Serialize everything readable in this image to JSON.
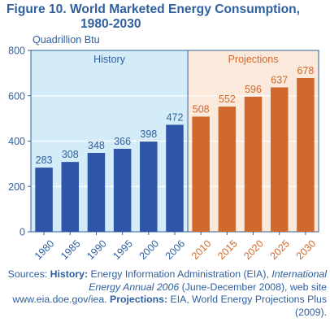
{
  "figure": {
    "title_line1": "Figure 10.  World Marketed Energy Consumption,",
    "title_line2": "1980-2030"
  },
  "sources": {
    "prefix": "Sources: ",
    "history_label": "History:",
    "history_text": " Energy Information Administration (EIA), ",
    "publication": "International Energy Annual 2006",
    "history_text2": " (June-December 2008), web site www.eia.doe.gov/iea. ",
    "projections_label": "Projections:",
    "projections_text": " EIA, World Energy Projections Plus (2009)."
  },
  "colors": {
    "history_bar": "#2e55a8",
    "projection_bar": "#d0692b",
    "history_bg": "#d3ecf8",
    "projection_bg": "#fbe9dc",
    "text": "#2f5f9e"
  },
  "chart_data": {
    "type": "bar",
    "unit_label": "Quadrillion Btu",
    "categories": [
      "1980",
      "1985",
      "1990",
      "1995",
      "2000",
      "2006",
      "2010",
      "2015",
      "2020",
      "2025",
      "2030"
    ],
    "values": [
      283,
      308,
      348,
      366,
      398,
      472,
      508,
      552,
      596,
      637,
      678
    ],
    "segments": [
      {
        "name": "History",
        "start": 0,
        "end": 5
      },
      {
        "name": "Projections",
        "start": 6,
        "end": 10
      }
    ],
    "ylim": [
      0,
      800
    ],
    "yticks": [
      0,
      200,
      400,
      600,
      800
    ],
    "grid": true
  }
}
